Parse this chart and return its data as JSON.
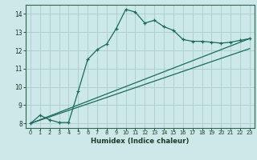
{
  "xlabel": "Humidex (Indice chaleur)",
  "bg_color": "#cce8e8",
  "grid_color": "#aacccc",
  "line_color": "#1a6b5a",
  "xlim": [
    -0.5,
    23.5
  ],
  "ylim": [
    7.75,
    14.5
  ],
  "yticks": [
    8,
    9,
    10,
    11,
    12,
    13,
    14
  ],
  "xticks": [
    0,
    1,
    2,
    3,
    4,
    5,
    6,
    7,
    8,
    9,
    10,
    11,
    12,
    13,
    14,
    15,
    16,
    17,
    18,
    19,
    20,
    21,
    22,
    23
  ],
  "curve1_x": [
    0,
    1,
    2,
    3,
    4,
    5,
    6,
    7,
    8,
    9,
    10,
    11,
    12,
    13,
    14,
    15,
    16,
    17,
    18,
    19,
    20,
    21,
    22,
    23
  ],
  "curve1_y": [
    8.0,
    8.45,
    8.2,
    8.05,
    8.05,
    9.75,
    11.5,
    12.05,
    12.35,
    13.2,
    14.25,
    14.1,
    13.5,
    13.65,
    13.3,
    13.1,
    12.6,
    12.5,
    12.5,
    12.45,
    12.4,
    12.45,
    12.55,
    12.65
  ],
  "curve2_x": [
    0,
    23
  ],
  "curve2_y": [
    8.0,
    12.65
  ],
  "curve3_x": [
    0,
    23
  ],
  "curve3_y": [
    8.0,
    12.1
  ]
}
